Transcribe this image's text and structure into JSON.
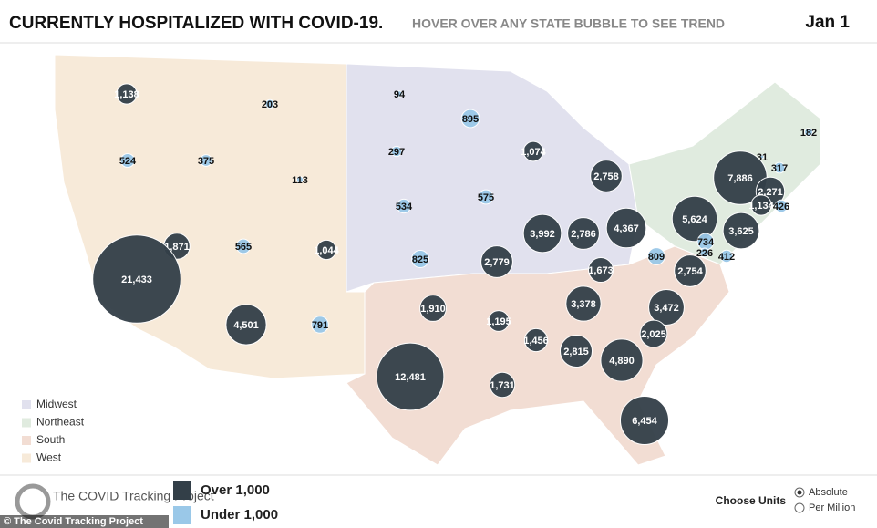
{
  "header": {
    "title": "CURRENTLY HOSPITALIZED WITH COVID-19.",
    "subtitle": "HOVER OVER ANY STATE BUBBLE TO SEE TREND",
    "date": "Jan 1"
  },
  "regions": [
    {
      "label": "Midwest",
      "color": "#e1e1ee"
    },
    {
      "label": "Northeast",
      "color": "#e0ebdf"
    },
    {
      "label": "South",
      "color": "#f2ddd3"
    },
    {
      "label": "West",
      "color": "#f7ead9"
    }
  ],
  "size_legend": [
    {
      "label": "Over 1,000",
      "value": 1000,
      "color": "#333f48"
    },
    {
      "label": "Under 1,000",
      "value": 1000,
      "color": "#9ac8e8"
    }
  ],
  "bubbles": [
    {
      "value": 1138,
      "label": "1,138"
    },
    {
      "value": 203,
      "label": "203"
    },
    {
      "value": 94,
      "label": "94"
    },
    {
      "value": 895,
      "label": "895"
    },
    {
      "value": 182,
      "label": "182"
    },
    {
      "value": 524,
      "label": "524"
    },
    {
      "value": 375,
      "label": "375"
    },
    {
      "value": 297,
      "label": "297"
    },
    {
      "value": 1074,
      "label": "1,074"
    },
    {
      "value": 2758,
      "label": "2,758"
    },
    {
      "value": 31,
      "label": "31"
    },
    {
      "value": 317,
      "label": "317"
    },
    {
      "value": 7886,
      "label": "7,886"
    },
    {
      "value": 113,
      "label": "113"
    },
    {
      "value": 2271,
      "label": "2,271"
    },
    {
      "value": 1134,
      "label": "1,134"
    },
    {
      "value": 426,
      "label": "426"
    },
    {
      "value": 534,
      "label": "534"
    },
    {
      "value": 575,
      "label": "575"
    },
    {
      "value": 5624,
      "label": "5,624"
    },
    {
      "value": 3625,
      "label": "3,625"
    },
    {
      "value": 3992,
      "label": "3,992"
    },
    {
      "value": 2786,
      "label": "2,786"
    },
    {
      "value": 4367,
      "label": "4,367"
    },
    {
      "value": 1871,
      "label": "1,871"
    },
    {
      "value": 565,
      "label": "565"
    },
    {
      "value": 1044,
      "label": "1,044"
    },
    {
      "value": 734,
      "label": "734"
    },
    {
      "value": 226,
      "label": "226"
    },
    {
      "value": 412,
      "label": "412"
    },
    {
      "value": 809,
      "label": "809"
    },
    {
      "value": 825,
      "label": "825"
    },
    {
      "value": 2779,
      "label": "2,779"
    },
    {
      "value": 1673,
      "label": "1,673"
    },
    {
      "value": 2754,
      "label": "2,754"
    },
    {
      "value": 21433,
      "label": "21,433"
    },
    {
      "value": 1910,
      "label": "1,910"
    },
    {
      "value": 3378,
      "label": "3,378"
    },
    {
      "value": 3472,
      "label": "3,472"
    },
    {
      "value": 1195,
      "label": "1,195"
    },
    {
      "value": 4501,
      "label": "4,501"
    },
    {
      "value": 791,
      "label": "791"
    },
    {
      "value": 2025,
      "label": "2,025"
    },
    {
      "value": 1456,
      "label": "1,456"
    },
    {
      "value": 2815,
      "label": "2,815"
    },
    {
      "value": 4890,
      "label": "4,890"
    },
    {
      "value": 12481,
      "label": "12,481"
    },
    {
      "value": 1731,
      "label": "1,731"
    },
    {
      "value": 6454,
      "label": "6,454"
    }
  ],
  "footer": {
    "logo_text": "The COVID Tracking Project",
    "units_label": "Choose Units",
    "units_options": [
      "Absolute",
      "Per Million"
    ],
    "credit": "© The Covid Tracking Project"
  }
}
